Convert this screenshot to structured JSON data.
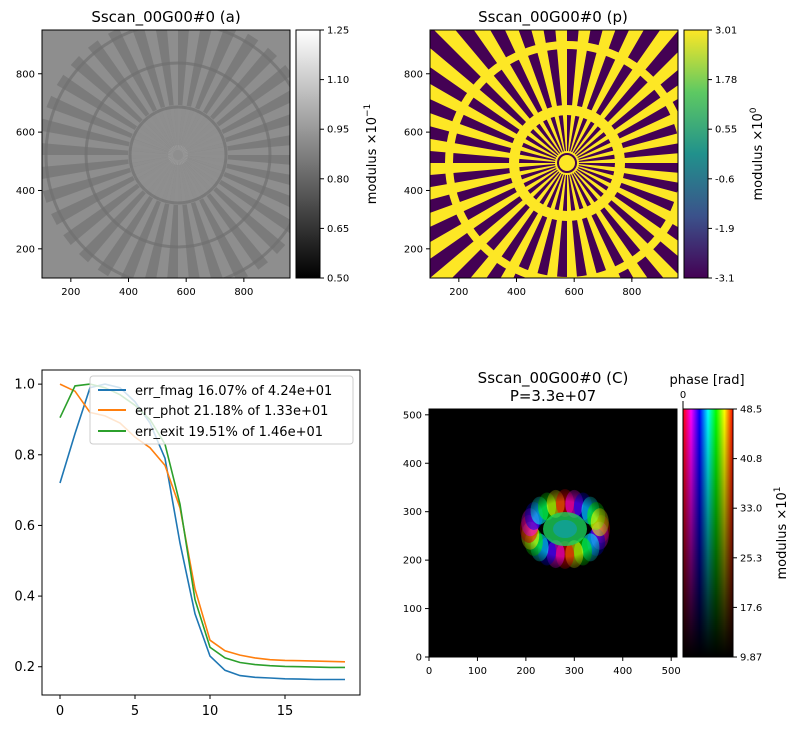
{
  "colors": {
    "fmag": "#1f77b4",
    "phot": "#ff7f0e",
    "exit": "#2ca02c",
    "viridis_low": "#440154",
    "viridis_high": "#fde725"
  },
  "chart_data": [
    {
      "id": "amp",
      "type": "heatmap",
      "title": "Sscan_00G00#0 (a)",
      "colormap": "gray",
      "xlim": [
        100,
        960
      ],
      "ylim": [
        100,
        950
      ],
      "xticks": [
        "200",
        "400",
        "600",
        "800"
      ],
      "yticks": [
        "200",
        "400",
        "600",
        "800"
      ],
      "colorbar": {
        "label": "modulus ×10",
        "exponent": "−1",
        "ticks": [
          "0.50",
          "0.65",
          "0.80",
          "0.95",
          "1.10",
          "1.25"
        ]
      }
    },
    {
      "id": "phase",
      "type": "heatmap",
      "title": "Sscan_00G00#0 (p)",
      "colormap": "viridis",
      "xlim": [
        100,
        960
      ],
      "ylim": [
        100,
        950
      ],
      "xticks": [
        "200",
        "400",
        "600",
        "800"
      ],
      "yticks": [
        "200",
        "400",
        "600",
        "800"
      ],
      "colorbar": {
        "label": "modulus ×10",
        "exponent": "0",
        "ticks": [
          "-3.1",
          "-1.9",
          "-0.6",
          "0.55",
          "1.78",
          "3.01"
        ]
      }
    },
    {
      "id": "errors",
      "type": "line",
      "xlim": [
        -1.2,
        20
      ],
      "ylim": [
        0.12,
        1.04
      ],
      "xticks": [
        "0",
        "5",
        "10",
        "15"
      ],
      "yticks": [
        "0.2",
        "0.4",
        "0.6",
        "0.8",
        "1.0"
      ],
      "legend": "top-right",
      "x": [
        0,
        1,
        2,
        3,
        4,
        5,
        6,
        7,
        8,
        9,
        10,
        11,
        12,
        13,
        14,
        15,
        16,
        17,
        18,
        19
      ],
      "series": [
        {
          "name": "err_fmag 16.07% of 4.24e+01",
          "values": [
            0.72,
            0.86,
            0.99,
            1.0,
            0.99,
            0.95,
            0.89,
            0.79,
            0.55,
            0.35,
            0.23,
            0.19,
            0.175,
            0.17,
            0.168,
            0.166,
            0.165,
            0.164,
            0.164,
            0.164
          ]
        },
        {
          "name": "err_phot 21.18% of 1.33e+01",
          "values": [
            1.0,
            0.98,
            0.92,
            0.91,
            0.89,
            0.85,
            0.82,
            0.77,
            0.65,
            0.42,
            0.275,
            0.245,
            0.233,
            0.225,
            0.22,
            0.218,
            0.217,
            0.216,
            0.215,
            0.214
          ]
        },
        {
          "name": "err_exit 19.51% of 1.46e+01",
          "values": [
            0.905,
            0.995,
            1.0,
            0.99,
            0.97,
            0.94,
            0.9,
            0.83,
            0.66,
            0.39,
            0.255,
            0.225,
            0.212,
            0.206,
            0.203,
            0.201,
            0.2,
            0.199,
            0.198,
            0.198
          ]
        }
      ]
    },
    {
      "id": "probe",
      "type": "heatmap",
      "title": "Sscan_00G00#0 (C)",
      "subtitle": "P=3.3e+07",
      "colormap": "phase-hsv",
      "xlim": [
        0,
        512
      ],
      "ylim": [
        0,
        512
      ],
      "xticks": [
        "0",
        "100",
        "200",
        "300",
        "400",
        "500"
      ],
      "yticks": [
        "0",
        "100",
        "200",
        "300",
        "400",
        "500"
      ],
      "colorbar": {
        "label": "modulus ×10",
        "exponent": "1",
        "top_label": "phase [rad]",
        "top_tick": "0",
        "ticks": [
          "9.87",
          "17.6",
          "25.3",
          "33.0",
          "40.8",
          "48.5"
        ]
      }
    }
  ]
}
